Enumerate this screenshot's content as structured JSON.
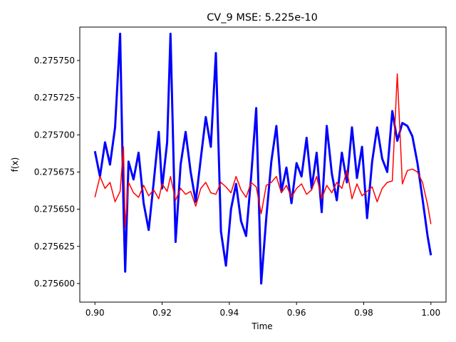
{
  "chart_data": {
    "type": "line",
    "title": "CV_9 MSE: 5.225e-10",
    "xlabel": "Time",
    "ylabel": "f(x)",
    "xlim": [
      0.8955,
      1.0045
    ],
    "ylim": [
      0.2755875,
      0.2757725
    ],
    "x_ticks": [
      0.9,
      0.92,
      0.94,
      0.96,
      0.98,
      1.0
    ],
    "x_tick_labels": [
      "0.90",
      "0.92",
      "0.94",
      "0.96",
      "0.98",
      "1.00"
    ],
    "y_ticks": [
      0.2756,
      0.275625,
      0.27565,
      0.275675,
      0.2757,
      0.275725,
      0.27575
    ],
    "y_tick_labels": [
      "0.275600",
      "0.275625",
      "0.275650",
      "0.275675",
      "0.275700",
      "0.275725",
      "0.275750"
    ],
    "grid": false,
    "legend": "none",
    "series": [
      {
        "color": "#0000ff",
        "linewidth": 3,
        "x": [
          0.9,
          0.9015,
          0.903,
          0.9045,
          0.906,
          0.9075,
          0.9085,
          0.909,
          0.91,
          0.9115,
          0.913,
          0.9145,
          0.916,
          0.9175,
          0.919,
          0.92,
          0.9215,
          0.9225,
          0.924,
          0.9255,
          0.927,
          0.9285,
          0.93,
          0.9315,
          0.933,
          0.9345,
          0.936,
          0.9375,
          0.939,
          0.9405,
          0.942,
          0.9435,
          0.945,
          0.9465,
          0.948,
          0.9495,
          0.951,
          0.9525,
          0.954,
          0.9555,
          0.957,
          0.9585,
          0.96,
          0.9615,
          0.963,
          0.9645,
          0.966,
          0.9675,
          0.969,
          0.9705,
          0.972,
          0.9735,
          0.975,
          0.9765,
          0.978,
          0.9795,
          0.981,
          0.9825,
          0.984,
          0.9855,
          0.987,
          0.9885,
          0.99,
          0.9915,
          0.993,
          0.9945,
          0.996,
          0.9975,
          0.999,
          1.0
        ],
        "y": [
          0.275689,
          0.275672,
          0.275695,
          0.27568,
          0.275705,
          0.275768,
          0.275652,
          0.275608,
          0.275682,
          0.27567,
          0.275688,
          0.275654,
          0.275636,
          0.275668,
          0.275702,
          0.275664,
          0.275695,
          0.275768,
          0.275628,
          0.27568,
          0.275702,
          0.275675,
          0.275655,
          0.275684,
          0.275712,
          0.275692,
          0.275755,
          0.275635,
          0.275612,
          0.27565,
          0.275667,
          0.275642,
          0.275632,
          0.275672,
          0.275718,
          0.2756,
          0.275644,
          0.275682,
          0.275706,
          0.275662,
          0.275678,
          0.275654,
          0.275681,
          0.275672,
          0.275698,
          0.275664,
          0.275688,
          0.275648,
          0.275706,
          0.275674,
          0.275656,
          0.275688,
          0.275668,
          0.275705,
          0.275671,
          0.275692,
          0.275644,
          0.275682,
          0.275705,
          0.275684,
          0.275675,
          0.275716,
          0.275696,
          0.275708,
          0.275706,
          0.275699,
          0.275681,
          0.275657,
          0.275632,
          0.275619
        ]
      },
      {
        "color": "#ff0000",
        "linewidth": 1.5,
        "x": [
          0.9,
          0.9015,
          0.903,
          0.9045,
          0.906,
          0.9075,
          0.9085,
          0.909,
          0.91,
          0.9115,
          0.913,
          0.9145,
          0.916,
          0.9175,
          0.919,
          0.92,
          0.9215,
          0.9225,
          0.924,
          0.9255,
          0.927,
          0.9285,
          0.93,
          0.9315,
          0.933,
          0.9345,
          0.936,
          0.9375,
          0.939,
          0.9405,
          0.942,
          0.9435,
          0.945,
          0.9465,
          0.948,
          0.9495,
          0.951,
          0.9525,
          0.954,
          0.9555,
          0.957,
          0.9585,
          0.96,
          0.9615,
          0.963,
          0.9645,
          0.966,
          0.9675,
          0.969,
          0.9705,
          0.972,
          0.9735,
          0.975,
          0.9765,
          0.978,
          0.9795,
          0.981,
          0.9825,
          0.984,
          0.9855,
          0.987,
          0.9885,
          0.99,
          0.9915,
          0.993,
          0.9945,
          0.996,
          0.9975,
          0.999,
          1.0
        ],
        "y": [
          0.275658,
          0.275672,
          0.275664,
          0.275668,
          0.275655,
          0.275662,
          0.275692,
          0.275638,
          0.275668,
          0.275661,
          0.275658,
          0.275666,
          0.275659,
          0.275663,
          0.275657,
          0.275667,
          0.275662,
          0.275672,
          0.275656,
          0.275664,
          0.27566,
          0.275662,
          0.275652,
          0.275664,
          0.275668,
          0.275661,
          0.27566,
          0.275668,
          0.275665,
          0.275661,
          0.275672,
          0.275663,
          0.275658,
          0.275668,
          0.275665,
          0.275647,
          0.275666,
          0.275668,
          0.275672,
          0.275661,
          0.275666,
          0.275658,
          0.275664,
          0.275667,
          0.27566,
          0.275663,
          0.275672,
          0.275657,
          0.275666,
          0.275661,
          0.275668,
          0.275664,
          0.275676,
          0.275657,
          0.275667,
          0.275659,
          0.275662,
          0.275665,
          0.275655,
          0.275664,
          0.275668,
          0.275669,
          0.275741,
          0.275667,
          0.275676,
          0.275677,
          0.275675,
          0.275668,
          0.275653,
          0.27564
        ]
      }
    ]
  }
}
